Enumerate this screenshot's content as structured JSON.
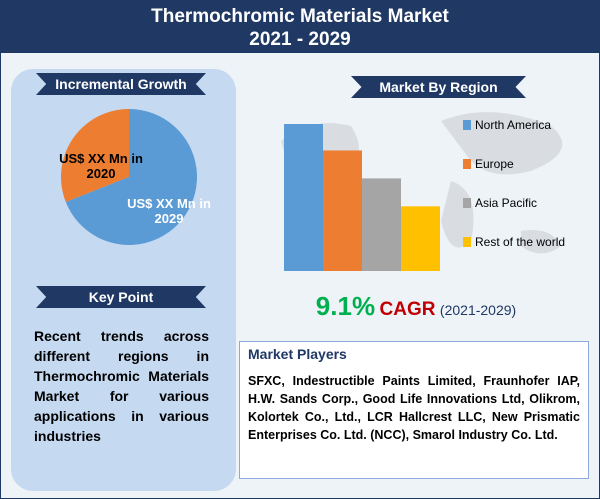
{
  "header": {
    "title": "Thermochromic Materials Market",
    "subtitle": "2021 - 2029"
  },
  "chart_data": [
    {
      "type": "pie",
      "title": "Incremental Growth",
      "categories": [
        "US$ XX Mn in 2020",
        "US$ XX Mn in 2029"
      ],
      "values": [
        31,
        69
      ],
      "colors": [
        "#ed7d31",
        "#5b9bd5"
      ]
    },
    {
      "type": "bar",
      "title": "Market By Region",
      "categories": [
        "North America",
        "Europe",
        "Asia Pacific",
        "Rest of the world"
      ],
      "values": [
        100,
        82,
        63,
        44
      ],
      "colors": [
        "#5b9bd5",
        "#ed7d31",
        "#a5a5a5",
        "#ffc000"
      ]
    }
  ],
  "cagr": {
    "value": "9.1%",
    "label": "CAGR",
    "period": "(2021-2029)"
  },
  "key_point": {
    "heading": "Key Point",
    "text": "Recent trends across different regions in Thermochromic Materials Market for various applications in various industries"
  },
  "market_players": {
    "heading": "Market Players",
    "text": "SFXC, Indestructible Paints Limited, Fraunhofer IAP, H.W. Sands Corp., Good Life Innovations Ltd, Olikrom, Kolortek Co., Ltd., LCR Hallcrest LLC, New Prismatic Enterprises Co. Ltd. (NCC), Smarol Industry Co. Ltd."
  }
}
